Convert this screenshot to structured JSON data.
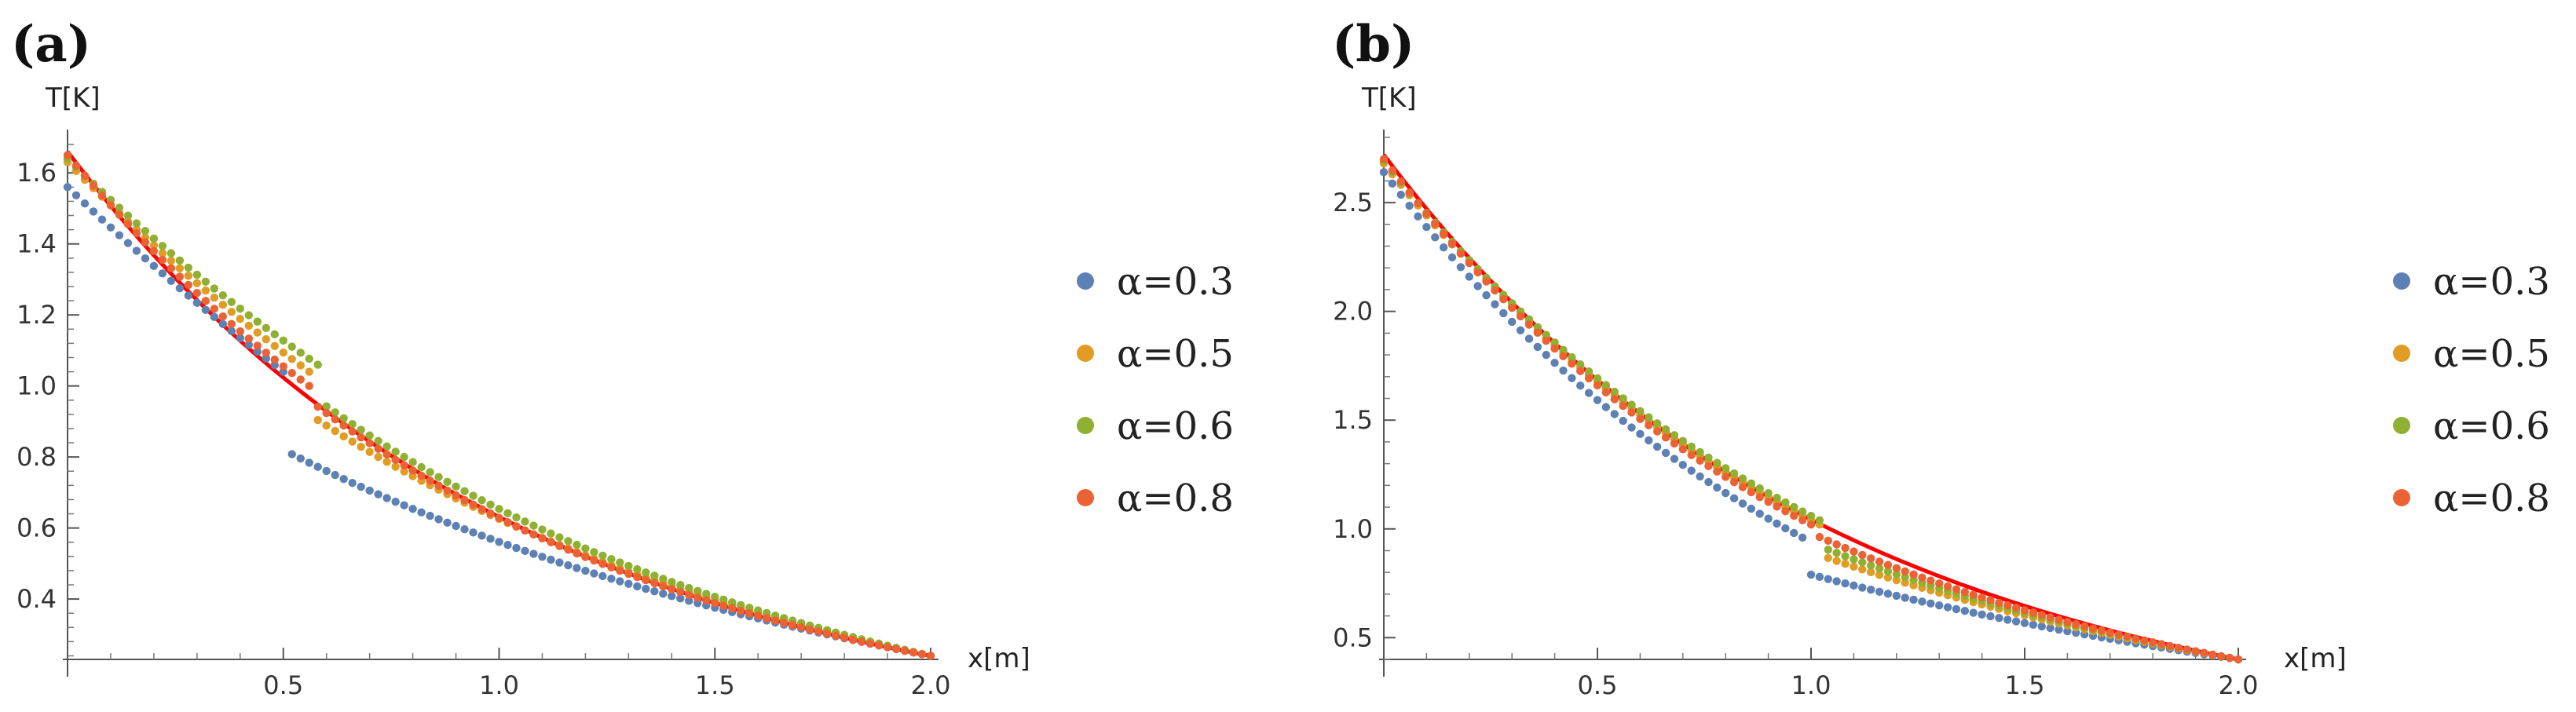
{
  "chart_data": [
    {
      "type": "scatter",
      "panel_label": "(a)",
      "xlabel": "x[m]",
      "ylabel": "T[K]",
      "xlim": [
        0.0,
        2.0
      ],
      "ylim": [
        0.23,
        1.7
      ],
      "xticks": [
        "0.5",
        "1.0",
        "1.5",
        "2.0"
      ],
      "xtick_values": [
        0.5,
        1.0,
        1.5,
        2.0
      ],
      "yticks": [
        "0.4",
        "0.6",
        "0.8",
        "1.0",
        "1.2",
        "1.4",
        "1.6"
      ],
      "ytick_values": [
        0.4,
        0.6,
        0.8,
        1.0,
        1.2,
        1.4,
        1.6
      ],
      "n_points": 100,
      "series": [
        {
          "name": "α=0.3",
          "color": "#5E81B5",
          "t0": 1.56,
          "tj1": 1.04,
          "tj2": 0.82,
          "tend": 0.24,
          "xj": 0.5,
          "kl": 0.55,
          "kr": 0.8
        },
        {
          "name": "α=0.5",
          "color": "#E19C24",
          "t0": 1.63,
          "tj1": 1.04,
          "tj2": 0.92,
          "tend": 0.24,
          "xj": 0.56,
          "kl": 0.75,
          "kr": 0.85
        },
        {
          "name": "α=0.6",
          "color": "#8FB032",
          "t0": 1.64,
          "tj1": 1.06,
          "tj2": 0.96,
          "tend": 0.24,
          "xj": 0.58,
          "kl": 0.85,
          "kr": 0.85
        },
        {
          "name": "α=0.8",
          "color": "#EB6235",
          "t0": 1.65,
          "tj1": 1.0,
          "tj2": 0.96,
          "tend": 0.24,
          "xj": 0.56,
          "kl": 1.0,
          "kr": 1.0
        }
      ],
      "reference_curve": {
        "color": "#FF0000",
        "t0": 1.66,
        "tend": 0.24
      }
    },
    {
      "type": "scatter",
      "panel_label": "(b)",
      "xlabel": "x[m]",
      "ylabel": "T[K]",
      "xlim": [
        0.0,
        2.0
      ],
      "ylim": [
        0.4,
        2.8
      ],
      "xticks": [
        "0.5",
        "1.0",
        "1.5",
        "2.0"
      ],
      "xtick_values": [
        0.5,
        1.0,
        1.5,
        2.0
      ],
      "yticks": [
        "0.5",
        "1.0",
        "1.5",
        "2.0",
        "2.5"
      ],
      "ytick_values": [
        0.5,
        1.0,
        1.5,
        2.0,
        2.5
      ],
      "n_points": 100,
      "series": [
        {
          "name": "α=0.3",
          "color": "#5E81B5",
          "t0": 2.64,
          "tj1": 0.96,
          "tj2": 0.8,
          "tend": 0.4,
          "xj": 0.98,
          "kl": 0.92,
          "kr": 0.85
        },
        {
          "name": "α=0.5",
          "color": "#E19C24",
          "t0": 2.68,
          "tj1": 1.02,
          "tj2": 0.88,
          "tend": 0.4,
          "xj": 1.02,
          "kl": 0.96,
          "kr": 0.9
        },
        {
          "name": "α=0.6",
          "color": "#8FB032",
          "t0": 2.69,
          "tj1": 1.04,
          "tj2": 0.92,
          "tend": 0.4,
          "xj": 1.02,
          "kl": 0.98,
          "kr": 0.95
        },
        {
          "name": "α=0.8",
          "color": "#EB6235",
          "t0": 2.7,
          "tj1": 1.02,
          "tj2": 0.98,
          "tend": 0.4,
          "xj": 1.0,
          "kl": 1.0,
          "kr": 1.0
        }
      ],
      "reference_curve": {
        "color": "#FF0000",
        "t0": 2.72,
        "tend": 0.4
      }
    }
  ]
}
